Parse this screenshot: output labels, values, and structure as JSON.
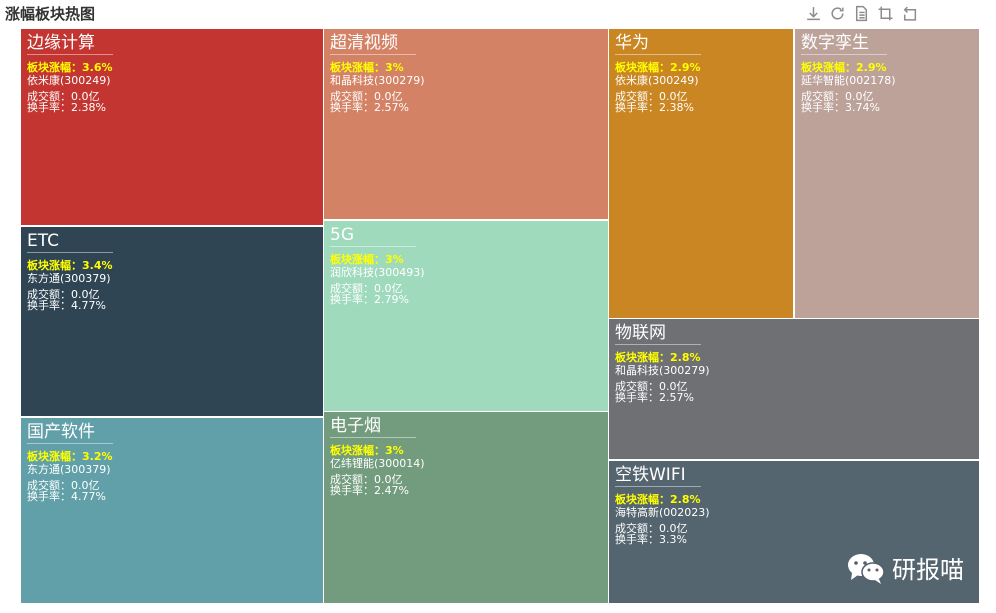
{
  "title": "涨幅板块热图",
  "toolbar": [
    {
      "name": "download-icon"
    },
    {
      "name": "refresh-icon"
    },
    {
      "name": "data-view-icon"
    },
    {
      "name": "zoom-icon"
    },
    {
      "name": "restore-icon"
    }
  ],
  "watermark": "研报喵",
  "chart_data": {
    "type": "treemap",
    "title": "涨幅板块热图",
    "rise_label": "板块涨幅：",
    "amount_label": "成交额：",
    "turnover_label": "换手率：",
    "sectors": [
      {
        "name": "边缘计算",
        "rise": "3.6%",
        "stock": "依米康(300249)",
        "amount": "0.0亿",
        "turnover": "2.38%",
        "color": "#c23531"
      },
      {
        "name": "ETC",
        "rise": "3.4%",
        "stock": "东方通(300379)",
        "amount": "0.0亿",
        "turnover": "4.77%",
        "color": "#2f4554"
      },
      {
        "name": "国产软件",
        "rise": "3.2%",
        "stock": "东方通(300379)",
        "amount": "0.0亿",
        "turnover": "4.77%",
        "color": "#61a0a8"
      },
      {
        "name": "超清视频",
        "rise": "3%",
        "stock": "和晶科技(300279)",
        "amount": "0.0亿",
        "turnover": "2.57%",
        "color": "#d48265"
      },
      {
        "name": "5G",
        "rise": "3%",
        "stock": "润欣科技(300493)",
        "amount": "0.0亿",
        "turnover": "2.79%",
        "color": "#a0dabd"
      },
      {
        "name": "电子烟",
        "rise": "3%",
        "stock": "亿纬锂能(300014)",
        "amount": "0.0亿",
        "turnover": "2.47%",
        "color": "#739c7e"
      },
      {
        "name": "华为",
        "rise": "2.9%",
        "stock": "依米康(300249)",
        "amount": "0.0亿",
        "turnover": "2.38%",
        "color": "#ca8622"
      },
      {
        "name": "数字孪生",
        "rise": "2.9%",
        "stock": "延华智能(002178)",
        "amount": "0.0亿",
        "turnover": "3.74%",
        "color": "#bda29a"
      },
      {
        "name": "物联网",
        "rise": "2.8%",
        "stock": "和晶科技(300279)",
        "amount": "0.0亿",
        "turnover": "2.57%",
        "color": "#6e7074"
      },
      {
        "name": "空铁WIFI",
        "rise": "2.8%",
        "stock": "海特高新(002023)",
        "amount": "0.0亿",
        "turnover": "3.3%",
        "color": "#546570"
      }
    ]
  }
}
